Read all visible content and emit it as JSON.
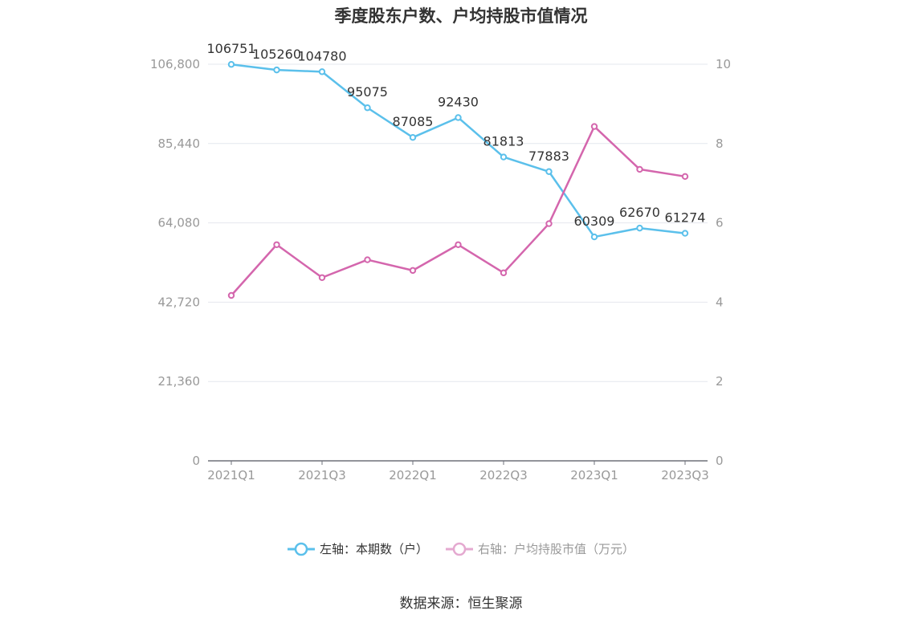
{
  "title": "季度股东户数、户均持股市值情况",
  "source": "数据来源：恒生聚源",
  "colors": {
    "left_series": "#5BC0EB",
    "right_series": "#D466AD",
    "axis_text": "#999999",
    "grid": "#E4E7EE"
  },
  "legend": [
    {
      "label": "左轴：本期数（户）",
      "color": "#5BC0EB",
      "active": true
    },
    {
      "label": "右轴：户均持股市值（万元）",
      "color": "#E4A9D0",
      "active": false
    }
  ],
  "chart_data": {
    "type": "line",
    "title": "季度股东户数、户均持股市值情况",
    "categories": [
      "2021Q1",
      "2021Q2",
      "2021Q3",
      "2021Q4",
      "2022Q1",
      "2022Q2",
      "2022Q3",
      "2022Q4",
      "2023Q1",
      "2023Q2",
      "2023Q3"
    ],
    "x_tick_labels": [
      "2021Q1",
      "2021Q3",
      "2022Q1",
      "2022Q3",
      "2023Q1",
      "2023Q3"
    ],
    "left_axis": {
      "ticks": [
        "0",
        "21,360",
        "42,720",
        "64,080",
        "85,440",
        "106,800"
      ],
      "min": 0,
      "max": 106800
    },
    "right_axis": {
      "ticks": [
        "0",
        "2",
        "4",
        "6",
        "8",
        "10"
      ],
      "min": 0,
      "max": 10
    },
    "grid": true,
    "legend_position": "bottom",
    "series": [
      {
        "name": "左轴：本期数（户）",
        "axis": "left",
        "color": "#5BC0EB",
        "values": [
          106751,
          105260,
          104780,
          95075,
          87085,
          92430,
          81813,
          77883,
          60309,
          62670,
          61274
        ],
        "labels": [
          "106751",
          "105260",
          "104780",
          "95075",
          "87085",
          "92430",
          "81813",
          "77883",
          "60309",
          "62670",
          "61274"
        ]
      },
      {
        "name": "右轴：户均持股市值（万元）",
        "axis": "right",
        "color": "#D466AD",
        "values": [
          4.17,
          5.45,
          4.62,
          5.07,
          4.8,
          5.45,
          4.74,
          5.98,
          8.43,
          7.35,
          7.17
        ]
      }
    ]
  }
}
